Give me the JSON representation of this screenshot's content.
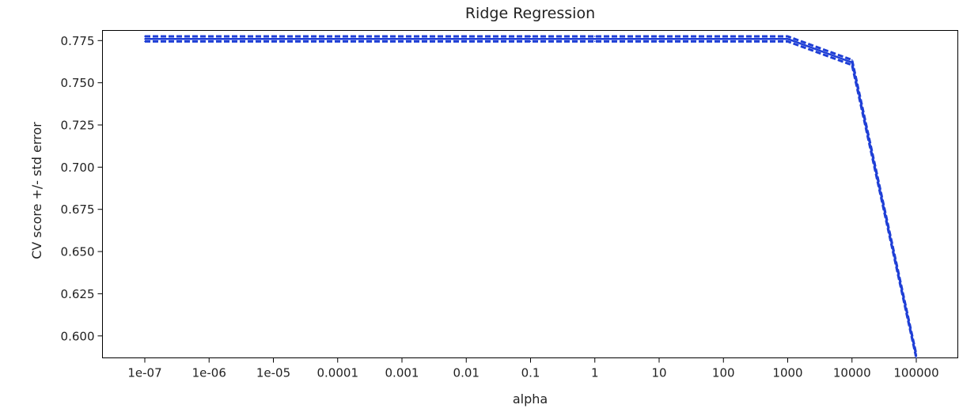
{
  "chart_data": {
    "type": "line",
    "title": "Ridge Regression",
    "xlabel": "alpha",
    "ylabel": "CV score +/- std error",
    "x_tick_labels": [
      "1e-07",
      "1e-06",
      "1e-05",
      "0.0001",
      "0.001",
      "0.01",
      "0.1",
      "1",
      "10",
      "100",
      "1000",
      "10000",
      "100000"
    ],
    "y_ticks": [
      0.6,
      0.625,
      0.65,
      0.675,
      0.7,
      0.725,
      0.75,
      0.775
    ],
    "y_tick_labels": [
      "0.600",
      "0.625",
      "0.650",
      "0.675",
      "0.700",
      "0.725",
      "0.750",
      "0.775"
    ],
    "ylim": [
      0.587,
      0.781
    ],
    "grid": false,
    "x": [
      1e-07,
      1e-06,
      1e-05,
      0.0001,
      0.001,
      0.01,
      0.1,
      1,
      10,
      100,
      1000,
      10000,
      100000
    ],
    "series": [
      {
        "style": "solid",
        "color": "#1f3fd6",
        "values": [
          0.776,
          0.776,
          0.776,
          0.776,
          0.776,
          0.776,
          0.776,
          0.776,
          0.776,
          0.776,
          0.776,
          0.762,
          0.588
        ]
      },
      {
        "style": "dashed",
        "color": "#1f3fd6",
        "values": [
          0.7775,
          0.7775,
          0.7775,
          0.7775,
          0.7775,
          0.7775,
          0.7775,
          0.7775,
          0.7775,
          0.7775,
          0.7775,
          0.7635,
          0.589
        ]
      },
      {
        "style": "dashed",
        "color": "#1f3fd6",
        "values": [
          0.7745,
          0.7745,
          0.7745,
          0.7745,
          0.7745,
          0.7745,
          0.7745,
          0.7745,
          0.7745,
          0.7745,
          0.7745,
          0.7605,
          0.587
        ]
      }
    ]
  }
}
